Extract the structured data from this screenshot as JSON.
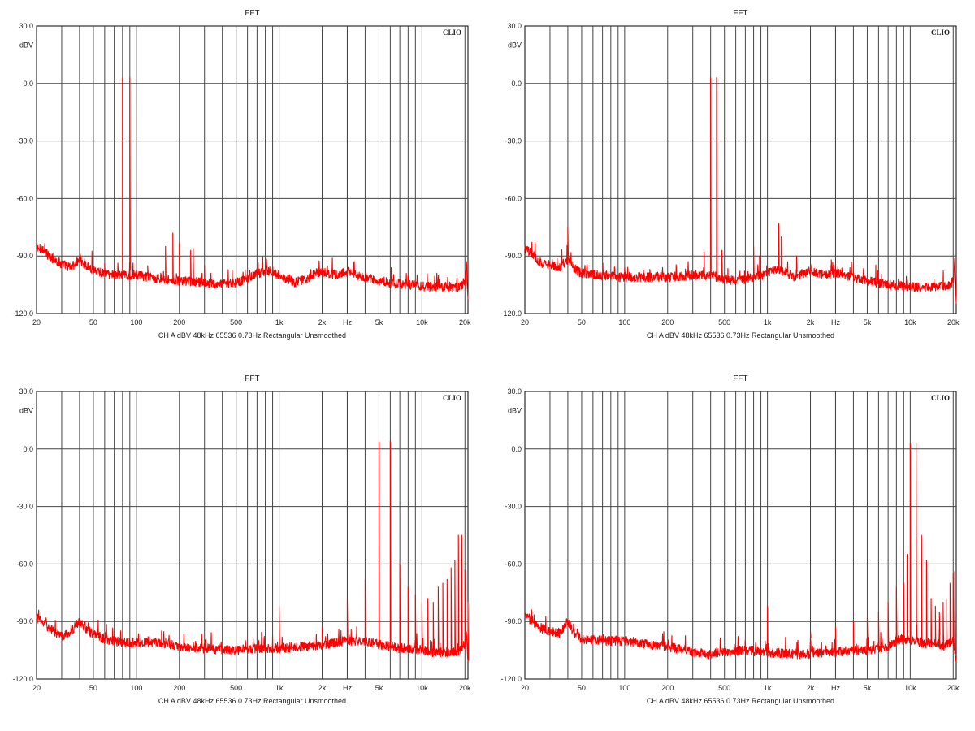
{
  "colors": {
    "trace": "#ff0000",
    "grid": "#444444",
    "frame": "#000000",
    "background": "#ffffff"
  },
  "chart_data": [
    {
      "type": "line",
      "title": "FFT",
      "brand": "CLIO",
      "ylabel": "dBV",
      "info": "CH A   dBV   48kHz   65536   0.73Hz   Rectangular   Unsmoothed",
      "xscale": "log",
      "xlim": [
        20,
        21000
      ],
      "ylim": [
        -120,
        30
      ],
      "grid": true,
      "yticks": [
        30,
        0,
        -30,
        -60,
        -90,
        -120
      ],
      "ytick_labels": [
        "30.0",
        "0.0",
        "-30.0",
        "-60.0",
        "-90.0",
        "-120.0"
      ],
      "xticks": [
        20,
        50,
        100,
        200,
        500,
        1000,
        2000,
        3000,
        5000,
        10000,
        20000
      ],
      "xtick_labels": [
        "20",
        "50",
        "100",
        "200",
        "500",
        "1k",
        "2k",
        "Hz",
        "5k",
        "10k",
        "20k"
      ],
      "series": [
        {
          "baseline": [
            [
              20,
              -87
            ],
            [
              22,
              -86
            ],
            [
              25,
              -91
            ],
            [
              30,
              -94
            ],
            [
              35,
              -96
            ],
            [
              40,
              -92
            ],
            [
              45,
              -95
            ],
            [
              50,
              -97
            ],
            [
              60,
              -99
            ],
            [
              80,
              -100
            ],
            [
              100,
              -100
            ],
            [
              150,
              -102
            ],
            [
              200,
              -103
            ],
            [
              300,
              -104
            ],
            [
              400,
              -105
            ],
            [
              500,
              -104
            ],
            [
              600,
              -102
            ],
            [
              700,
              -99
            ],
            [
              800,
              -98
            ],
            [
              900,
              -98
            ],
            [
              1000,
              -100
            ],
            [
              1300,
              -104
            ],
            [
              1500,
              -102
            ],
            [
              1800,
              -99
            ],
            [
              2000,
              -98
            ],
            [
              2500,
              -100
            ],
            [
              3000,
              -98
            ],
            [
              3500,
              -100
            ],
            [
              4000,
              -101
            ],
            [
              5000,
              -103
            ],
            [
              6000,
              -104
            ],
            [
              8000,
              -105
            ],
            [
              10000,
              -106
            ],
            [
              15000,
              -106
            ],
            [
              19000,
              -106
            ],
            [
              20000,
              -104
            ],
            [
              20500,
              -93
            ],
            [
              21000,
              -115
            ]
          ],
          "peaks": [
            [
              80,
              3
            ],
            [
              90,
              3
            ],
            [
              160,
              -85
            ],
            [
              180,
              -78
            ],
            [
              200,
              -83
            ],
            [
              240,
              -87
            ],
            [
              250,
              -86
            ],
            [
              300,
              -95
            ],
            [
              60,
              -94
            ],
            [
              120,
              -95
            ]
          ]
        }
      ]
    },
    {
      "type": "line",
      "title": "FFT",
      "brand": "CLIO",
      "ylabel": "dBV",
      "info": "CH A   dBV   48kHz   65536   0.73Hz   Rectangular   Unsmoothed",
      "xscale": "log",
      "xlim": [
        20,
        21000
      ],
      "ylim": [
        -120,
        30
      ],
      "grid": true,
      "yticks": [
        30,
        0,
        -30,
        -60,
        -90,
        -120
      ],
      "ytick_labels": [
        "30.0",
        "0.0",
        "-30.0",
        "-60.0",
        "-90.0",
        "-120.0"
      ],
      "xticks": [
        20,
        50,
        100,
        200,
        500,
        1000,
        2000,
        3000,
        5000,
        10000,
        20000
      ],
      "xtick_labels": [
        "20",
        "50",
        "100",
        "200",
        "500",
        "1k",
        "2k",
        "Hz",
        "5k",
        "10k",
        "20k"
      ],
      "series": [
        {
          "baseline": [
            [
              20,
              -87
            ],
            [
              22,
              -88
            ],
            [
              25,
              -93
            ],
            [
              30,
              -95
            ],
            [
              35,
              -96
            ],
            [
              40,
              -92
            ],
            [
              45,
              -97
            ],
            [
              50,
              -99
            ],
            [
              70,
              -100
            ],
            [
              100,
              -101
            ],
            [
              150,
              -101
            ],
            [
              200,
              -101
            ],
            [
              300,
              -100
            ],
            [
              400,
              -100
            ],
            [
              500,
              -102
            ],
            [
              600,
              -103
            ],
            [
              700,
              -102
            ],
            [
              800,
              -101
            ],
            [
              900,
              -100
            ],
            [
              1000,
              -99
            ],
            [
              1200,
              -97
            ],
            [
              1300,
              -98
            ],
            [
              1500,
              -101
            ],
            [
              1800,
              -99
            ],
            [
              2000,
              -98
            ],
            [
              2500,
              -100
            ],
            [
              3000,
              -99
            ],
            [
              4000,
              -101
            ],
            [
              5000,
              -103
            ],
            [
              7000,
              -105
            ],
            [
              10000,
              -106
            ],
            [
              15000,
              -106
            ],
            [
              19000,
              -105
            ],
            [
              20000,
              -103
            ],
            [
              20500,
              -95
            ],
            [
              21000,
              -113
            ]
          ],
          "peaks": [
            [
              40,
              -75
            ],
            [
              400,
              3
            ],
            [
              440,
              3
            ],
            [
              360,
              -88
            ],
            [
              480,
              -87
            ],
            [
              800,
              -85
            ],
            [
              880,
              -90
            ],
            [
              1200,
              -73
            ],
            [
              1250,
              -80
            ],
            [
              1600,
              -90
            ],
            [
              2800,
              -92
            ],
            [
              100,
              -96
            ],
            [
              150,
              -97
            ]
          ]
        }
      ]
    },
    {
      "type": "line",
      "title": "FFT",
      "brand": "CLIO",
      "ylabel": "dBV",
      "info": "CH A   dBV   48kHz   65536   0.73Hz   Rectangular   Unsmoothed",
      "xscale": "log",
      "xlim": [
        20,
        21000
      ],
      "ylim": [
        -120,
        30
      ],
      "grid": true,
      "yticks": [
        30,
        0,
        -30,
        -60,
        -90,
        -120
      ],
      "ytick_labels": [
        "30.0",
        "0.0",
        "-30.0",
        "-60.0",
        "-90.0",
        "-120.0"
      ],
      "xticks": [
        20,
        50,
        100,
        200,
        500,
        1000,
        2000,
        3000,
        5000,
        10000,
        20000
      ],
      "xtick_labels": [
        "20",
        "50",
        "100",
        "200",
        "500",
        "1k",
        "2k",
        "Hz",
        "5k",
        "10k",
        "20k"
      ],
      "series": [
        {
          "baseline": [
            [
              20,
              -88
            ],
            [
              22,
              -90
            ],
            [
              25,
              -94
            ],
            [
              30,
              -98
            ],
            [
              35,
              -95
            ],
            [
              40,
              -90
            ],
            [
              45,
              -94
            ],
            [
              50,
              -97
            ],
            [
              60,
              -99
            ],
            [
              80,
              -101
            ],
            [
              100,
              -101
            ],
            [
              150,
              -101
            ],
            [
              200,
              -103
            ],
            [
              300,
              -104
            ],
            [
              400,
              -105
            ],
            [
              500,
              -105
            ],
            [
              700,
              -104
            ],
            [
              1000,
              -104
            ],
            [
              1500,
              -103
            ],
            [
              2000,
              -102
            ],
            [
              2500,
              -101
            ],
            [
              3000,
              -100
            ],
            [
              4000,
              -100
            ],
            [
              5000,
              -102
            ],
            [
              6000,
              -103
            ],
            [
              7000,
              -104
            ],
            [
              8000,
              -104
            ],
            [
              10000,
              -105
            ],
            [
              12000,
              -106
            ],
            [
              15000,
              -106
            ],
            [
              19000,
              -105
            ],
            [
              20000,
              -103
            ],
            [
              20500,
              -96
            ],
            [
              21000,
              -110
            ]
          ],
          "peaks": [
            [
              1000,
              -82
            ],
            [
              2000,
              -93
            ],
            [
              3000,
              -78
            ],
            [
              4000,
              -68
            ],
            [
              5000,
              4
            ],
            [
              6000,
              4
            ],
            [
              7000,
              -60
            ],
            [
              8000,
              -72
            ],
            [
              9000,
              -76
            ],
            [
              10000,
              -80
            ],
            [
              11000,
              -78
            ],
            [
              12000,
              -80
            ],
            [
              13000,
              -72
            ],
            [
              14000,
              -70
            ],
            [
              15000,
              -68
            ],
            [
              16000,
              -62
            ],
            [
              17000,
              -58
            ],
            [
              18000,
              -45
            ],
            [
              19000,
              -45
            ],
            [
              20000,
              -63
            ],
            [
              21000,
              -80
            ],
            [
              150,
              -95
            ]
          ]
        }
      ]
    },
    {
      "type": "line",
      "title": "FFT",
      "brand": "CLIO",
      "ylabel": "dBV",
      "info": "CH A   dBV   48kHz   65536   0.73Hz   Rectangular   Unsmoothed",
      "xscale": "log",
      "xlim": [
        20,
        21000
      ],
      "ylim": [
        -120,
        30
      ],
      "grid": true,
      "yticks": [
        30,
        0,
        -30,
        -60,
        -90,
        -120
      ],
      "ytick_labels": [
        "30.0",
        "0.0",
        "-30.0",
        "-60.0",
        "-90.0",
        "-120.0"
      ],
      "xticks": [
        20,
        50,
        100,
        200,
        500,
        1000,
        2000,
        3000,
        5000,
        10000,
        20000
      ],
      "xtick_labels": [
        "20",
        "50",
        "100",
        "200",
        "500",
        "1k",
        "2k",
        "Hz",
        "5k",
        "10k",
        "20k"
      ],
      "series": [
        {
          "baseline": [
            [
              20,
              -87
            ],
            [
              22,
              -89
            ],
            [
              25,
              -93
            ],
            [
              30,
              -95
            ],
            [
              35,
              -96
            ],
            [
              40,
              -90
            ],
            [
              45,
              -97
            ],
            [
              50,
              -99
            ],
            [
              70,
              -100
            ],
            [
              100,
              -100
            ],
            [
              150,
              -102
            ],
            [
              200,
              -103
            ],
            [
              300,
              -106
            ],
            [
              400,
              -107
            ],
            [
              500,
              -106
            ],
            [
              700,
              -105
            ],
            [
              1000,
              -106
            ],
            [
              1500,
              -107
            ],
            [
              2000,
              -107
            ],
            [
              2500,
              -106
            ],
            [
              3000,
              -106
            ],
            [
              4000,
              -105
            ],
            [
              5000,
              -105
            ],
            [
              6000,
              -104
            ],
            [
              7000,
              -103
            ],
            [
              8000,
              -100
            ],
            [
              9000,
              -99
            ],
            [
              10000,
              -100
            ],
            [
              11000,
              -99
            ],
            [
              12000,
              -102
            ],
            [
              14000,
              -101
            ],
            [
              17000,
              -103
            ],
            [
              20000,
              -100
            ],
            [
              21000,
              -112
            ]
          ],
          "peaks": [
            [
              1000,
              -82
            ],
            [
              2000,
              -95
            ],
            [
              3000,
              -93
            ],
            [
              4000,
              -90
            ],
            [
              5000,
              -88
            ],
            [
              6000,
              -85
            ],
            [
              7000,
              -80
            ],
            [
              8000,
              -72
            ],
            [
              9000,
              -70
            ],
            [
              10000,
              3
            ],
            [
              11000,
              3
            ],
            [
              9500,
              -55
            ],
            [
              12000,
              -45
            ],
            [
              13000,
              -58
            ],
            [
              14000,
              -78
            ],
            [
              15000,
              -82
            ],
            [
              16000,
              -85
            ],
            [
              17000,
              -80
            ],
            [
              18000,
              -78
            ],
            [
              19000,
              -70
            ],
            [
              20000,
              -65
            ],
            [
              20500,
              -64
            ]
          ]
        }
      ]
    }
  ]
}
